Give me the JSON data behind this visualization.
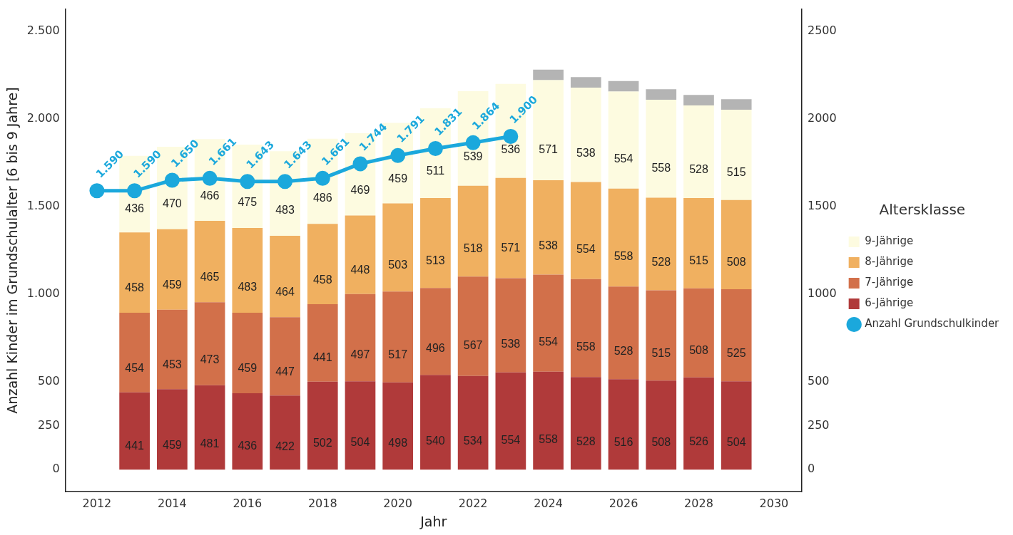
{
  "chart_data": {
    "type": "bar",
    "stacked": true,
    "xlabel": "Jahr",
    "ylabel": "Anzahl Kinder im Grundschulalter [6 bis 9 Jahre]",
    "legend_title": "Altersklasse",
    "legend": "right",
    "grid": false,
    "x": [
      2013,
      2014,
      2015,
      2016,
      2017,
      2018,
      2019,
      2020,
      2021,
      2022,
      2023,
      2024,
      2025,
      2026,
      2027,
      2028,
      2029
    ],
    "xlim": [
      2011.16,
      2030.74
    ],
    "xticks": [
      2012,
      2014,
      2016,
      2018,
      2020,
      2022,
      2024,
      2026,
      2028,
      2030
    ],
    "ylim": [
      -125,
      2625
    ],
    "yticks": [
      0,
      250,
      500,
      {
        "value": 1000,
        "label": "1.000"
      },
      {
        "value": 1500,
        "label": "1.500"
      },
      {
        "value": 2000,
        "label": "2.000"
      },
      {
        "value": 2500,
        "label": "2.500"
      }
    ],
    "y2lim": [
      -125,
      2625
    ],
    "y2ticks": [
      0,
      250,
      500,
      1000,
      1500,
      2000,
      2500
    ],
    "series": [
      {
        "name": "6-Jährige",
        "color": "#b03a3a",
        "values": [
          441,
          459,
          481,
          436,
          422,
          502,
          504,
          498,
          540,
          534,
          554,
          558,
          528,
          516,
          508,
          526,
          504
        ],
        "value_labels": [
          "441",
          "459",
          "481",
          "436",
          "422",
          "502",
          "504",
          "498",
          "540",
          "534",
          "554",
          "558",
          "528",
          "516",
          "508",
          "526",
          "504"
        ]
      },
      {
        "name": "7-Jährige",
        "color": "#d2704a",
        "values": [
          454,
          453,
          473,
          459,
          447,
          441,
          497,
          517,
          496,
          567,
          538,
          554,
          558,
          528,
          515,
          508,
          525
        ],
        "value_labels": [
          "454",
          "453",
          "473",
          "459",
          "447",
          "441",
          "497",
          "517",
          "496",
          "567",
          "538",
          "554",
          "558",
          "528",
          "515",
          "508",
          "525"
        ]
      },
      {
        "name": "8-Jährige",
        "color": "#f0b060",
        "values": [
          458,
          459,
          465,
          483,
          464,
          458,
          448,
          503,
          513,
          518,
          571,
          538,
          554,
          558,
          528,
          515,
          508
        ],
        "value_labels": [
          "458",
          "459",
          "465",
          "483",
          "464",
          "458",
          "448",
          "503",
          "513",
          "518",
          "571",
          "538",
          "554",
          "558",
          "528",
          "515",
          "508"
        ]
      },
      {
        "name": "9-Jährige",
        "color": "#fdfbe0",
        "values": [
          436,
          470,
          466,
          475,
          483,
          486,
          469,
          459,
          511,
          539,
          536,
          571,
          538,
          554,
          558,
          528,
          515
        ],
        "value_labels": [
          "436",
          "470",
          "466",
          "475",
          "483",
          "486",
          "469",
          "459",
          "511",
          "539",
          "536",
          "571",
          "538",
          "554",
          "558",
          "528",
          "515"
        ]
      },
      {
        "color": "#b4b4b4",
        "values": [
          null,
          null,
          null,
          null,
          null,
          null,
          null,
          null,
          null,
          null,
          null,
          60,
          60,
          60,
          60,
          60,
          60
        ]
      },
      {
        "name": "Anzahl Grundschulkinder",
        "type": "line",
        "marker": "circle",
        "color": "#1ba8dc",
        "x": [
          2012,
          2013,
          2014,
          2015,
          2016,
          2017,
          2018,
          2019,
          2020,
          2021,
          2022,
          2023
        ],
        "values": [
          1590,
          1590,
          1650,
          1661,
          1643,
          1643,
          1661,
          1744,
          1791,
          1831,
          1864,
          1900
        ],
        "value_labels": [
          "1.590",
          "1.590",
          "1.650",
          "1.661",
          "1.643",
          "1.643",
          "1.661",
          "1.744",
          "1.791",
          "1.831",
          "1.864",
          "1.900"
        ]
      }
    ]
  }
}
